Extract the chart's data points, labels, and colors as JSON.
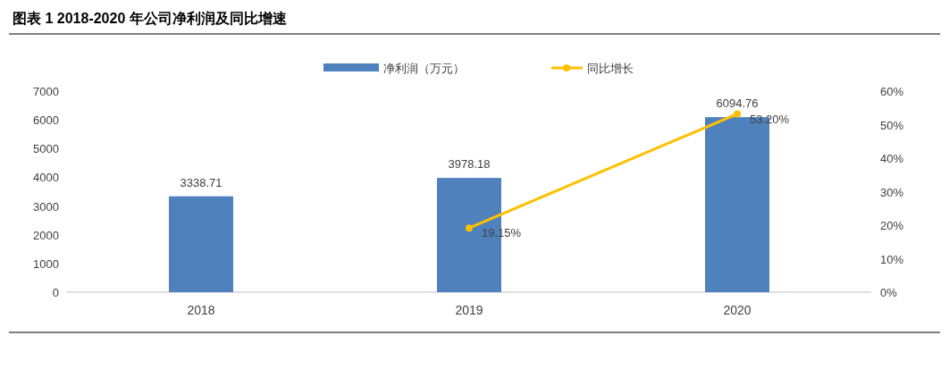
{
  "chart_data": {
    "type": "bar",
    "title": "图表 1 2018-2020 年公司净利润及同比增速",
    "categories": [
      "2018",
      "2019",
      "2020"
    ],
    "series": [
      {
        "name": "净利润（万元）",
        "color": "#4f81bd",
        "values": [
          3338.71,
          3978.18,
          6094.76
        ],
        "value_labels": [
          "3338.71",
          "3978.18",
          "6094.76"
        ]
      },
      {
        "name": "同比增长",
        "type": "line",
        "axis": "y2",
        "color": "#ffc000",
        "marker": "circle",
        "values": [
          null,
          19.15,
          53.2
        ],
        "value_labels": [
          null,
          "19.15%",
          "53.20%"
        ]
      }
    ],
    "ylim": [
      0,
      7000
    ],
    "yticks": [
      0,
      1000,
      2000,
      3000,
      4000,
      5000,
      6000,
      7000
    ],
    "y2lim": [
      0,
      60
    ],
    "y2ticks": [
      {
        "value": 0,
        "label": "0%"
      },
      {
        "value": 10,
        "label": "10%"
      },
      {
        "value": 20,
        "label": "20%"
      },
      {
        "value": 30,
        "label": "30%"
      },
      {
        "value": 40,
        "label": "40%"
      },
      {
        "value": 50,
        "label": "50%"
      },
      {
        "value": 60,
        "label": "60%"
      }
    ],
    "legend": "top"
  }
}
